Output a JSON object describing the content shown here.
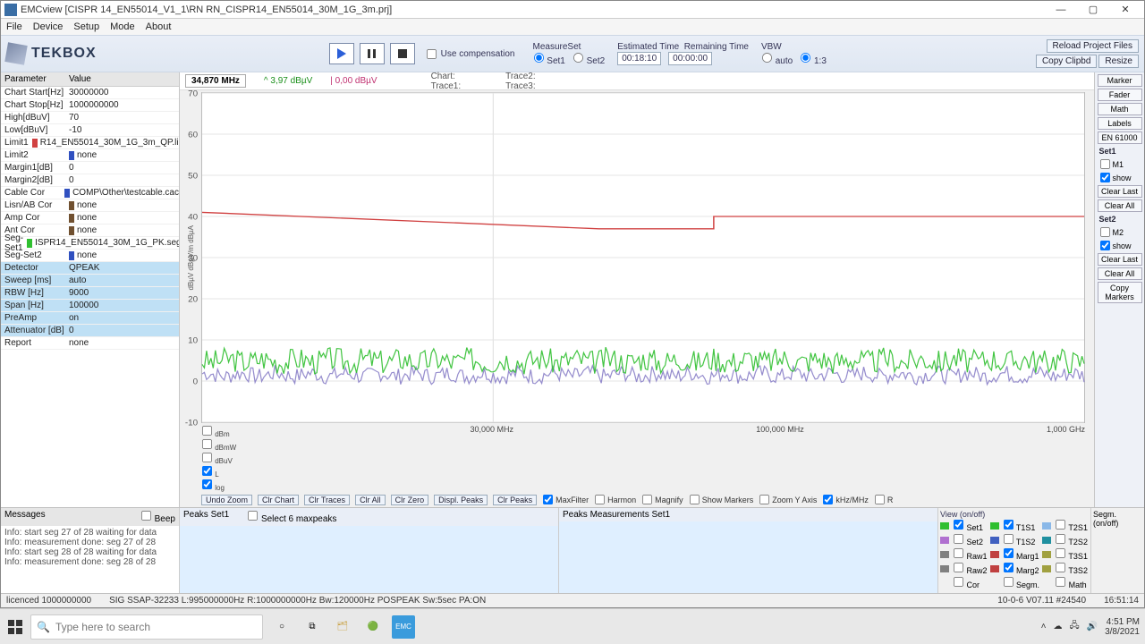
{
  "window": {
    "title": "EMCview [CISPR 14_EN55014_V1_1\\RN RN_CISPR14_EN55014_30M_1G_3m.prj]"
  },
  "menu": [
    "File",
    "Device",
    "Setup",
    "Mode",
    "About"
  ],
  "logo": "TEKBOX",
  "compensation": "Use compensation",
  "measure": {
    "label": "MeasureSet",
    "set1": "Set1",
    "set2": "Set2"
  },
  "time": {
    "estLabel": "Estimated Time",
    "remLabel": "Remaining Time",
    "est": "00:18:10",
    "rem": "00:00:00"
  },
  "vbw": {
    "label": "VBW",
    "auto": "auto",
    "r13": "1:3"
  },
  "rbtns": {
    "reload": "Reload Project Files",
    "copy": "Copy Clipbd",
    "resize": "Resize"
  },
  "paramHeader": {
    "p": "Parameter",
    "v": "Value"
  },
  "params": [
    {
      "p": "Chart Start[Hz]",
      "v": "30000000"
    },
    {
      "p": "Chart Stop[Hz]",
      "v": "1000000000"
    },
    {
      "p": "High[dBuV]",
      "v": "70"
    },
    {
      "p": "Low[dBuV]",
      "v": "-10"
    },
    {
      "p": "Limit1",
      "v": "R14_EN55014_30M_1G_3m_QP.lim",
      "c": "#d04040"
    },
    {
      "p": "Limit2",
      "v": "none",
      "c": "#3050c0"
    },
    {
      "p": "Margin1[dB]",
      "v": "0"
    },
    {
      "p": "Margin2[dB]",
      "v": "0"
    },
    {
      "p": "Cable Cor",
      "v": "COMP\\Other\\testcable.cac",
      "c": "#3050c0"
    },
    {
      "p": "Lisn/AB Cor",
      "v": "none",
      "c": "#705030"
    },
    {
      "p": "Amp Cor",
      "v": "none",
      "c": "#705030"
    },
    {
      "p": "Ant Cor",
      "v": "none",
      "c": "#705030"
    },
    {
      "p": "Seg-Set1",
      "v": "ISPR14_EN55014_30M_1G_PK.seg",
      "c": "#30c030"
    },
    {
      "p": "Seg-Set2",
      "v": "none",
      "c": "#3050c0"
    },
    {
      "p": "Detector",
      "v": "QPEAK",
      "hl": true
    },
    {
      "p": "Sweep [ms]",
      "v": "auto",
      "hl": true
    },
    {
      "p": "RBW [Hz]",
      "v": "9000",
      "hl": true
    },
    {
      "p": "Span [Hz]",
      "v": "100000",
      "hl": true
    },
    {
      "p": "PreAmp",
      "v": "on",
      "hl": true
    },
    {
      "p": "Attenuator [dB]",
      "v": "0",
      "hl": true
    },
    {
      "p": "Report",
      "v": "none"
    }
  ],
  "chartHeader": {
    "freq": "34,870 MHz",
    "v1": "^ 3,97 dBµV",
    "v2": "| 0,00 dBµV",
    "chart": "Chart:",
    "trace1": "Trace1:",
    "trace2": "Trace2:",
    "trace3": "Trace3:"
  },
  "chart": {
    "ylim": [
      -10,
      70
    ],
    "ytick": 10,
    "xlim_label_left": "30,000 MHz",
    "xlim_label_mid": "100,000 MHz",
    "xlim_label_right": "1,000 GHz",
    "ylabel": "dBµV   dBµV/m   dBµA",
    "bg": "#ffffff",
    "grid": "#e4e4e4",
    "limit1": {
      "color": "#d04040",
      "pts": [
        [
          0,
          41
        ],
        [
          0.45,
          37
        ],
        [
          0.58,
          37
        ],
        [
          0.58,
          40
        ],
        [
          1,
          40
        ]
      ]
    },
    "trace_green": {
      "color": "#2fbf2f",
      "base": 5,
      "amp": 3
    },
    "trace_purple": {
      "color": "#8a7fc8",
      "base": 1.5,
      "amp": 2
    }
  },
  "plotLeftChecks": [
    "dBm",
    "dBmW",
    "dBuV",
    "L",
    "log"
  ],
  "zoomBtns": [
    "Undo Zoom",
    "Clr Chart",
    "Clr Traces",
    "Clr All",
    "Clr Zero",
    "Displ. Peaks",
    "Clr Peaks"
  ],
  "plotChecks": [
    "MaxFilter",
    "Harmon",
    "Magnify",
    "Show Markers",
    "Zoom Y Axis",
    "kHz/MHz",
    "R"
  ],
  "right": {
    "top": [
      "Marker",
      "Fader",
      "Math",
      "Labels",
      "EN 61000"
    ],
    "set1": {
      "lbl": "Set1",
      "m": "M1",
      "show": "show",
      "clear": "Clear Last",
      "all": "Clear All"
    },
    "set2": {
      "lbl": "Set2",
      "m": "M2",
      "show": "show",
      "clear": "Clear Last",
      "all": "Clear All"
    },
    "copy": "Copy Markers"
  },
  "messages": {
    "hdr": "Messages",
    "beep": "Beep",
    "lines": [
      "Info: start seg 27 of 28 waiting for data",
      "Info: measurement done: seg 27 of 28",
      "Info: start seg 28 of 28 waiting for data",
      "Info: measurement done: seg 28 of 28"
    ]
  },
  "peaks1": {
    "hdr": "Peaks Set1",
    "sel": "Select 6 maxpeaks"
  },
  "peaks2": {
    "hdr": "Peaks Measurements Set1"
  },
  "view": {
    "hdr": "View (on/off)",
    "rows": [
      [
        "#2fbf2f",
        "Set1",
        "#2fbf2f",
        "T1S1",
        "#8ab8e8",
        "T2S1"
      ],
      [
        "#b070d0",
        "Set2",
        "#4060c0",
        "T1S2",
        "#2090a0",
        "T2S2"
      ],
      [
        "#808080",
        "Raw1",
        "#c04040",
        "Marg1",
        "#a0a040",
        "T3S1"
      ],
      [
        "#808080",
        "Raw2",
        "#c04040",
        "Marg2",
        "#a0a040",
        "T3S2"
      ],
      [
        "",
        "Cor",
        "",
        "Segm.",
        "",
        "Math"
      ]
    ]
  },
  "segm": "Segm. (on/off)",
  "status": {
    "lic": "licenced        1000000000",
    "sig": "SIG SSAP-32233     L:995000000Hz R:1000000000Hz Bw:120000Hz POSPEAK Sw:5sec PA:ON",
    "ver": "10-0-6 V07.11 #24540",
    "clock": "16:51:14"
  },
  "taskbar": {
    "search": "Type here to search",
    "time": "4:51 PM",
    "date": "3/8/2021"
  }
}
